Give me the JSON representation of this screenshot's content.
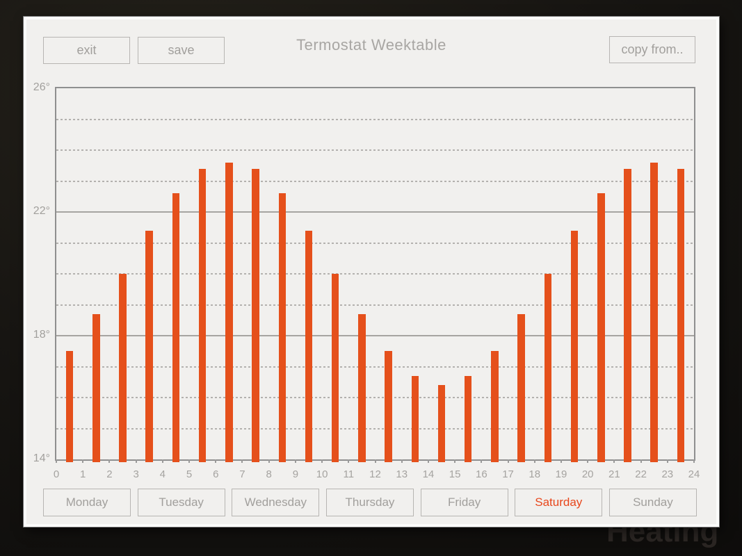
{
  "background_watermark": "Heating",
  "header": {
    "exit_label": "exit",
    "save_label": "save",
    "title": "Termostat Weektable",
    "copy_from_label": "copy from.."
  },
  "days": {
    "items": [
      "Monday",
      "Tuesday",
      "Wednesday",
      "Thursday",
      "Friday",
      "Saturday",
      "Sunday"
    ],
    "selected": "Saturday"
  },
  "chart_data": {
    "type": "bar",
    "title": "Termostat Weektable",
    "xlabel": "",
    "ylabel": "",
    "categories": [
      0,
      1,
      2,
      3,
      4,
      5,
      6,
      7,
      8,
      9,
      10,
      11,
      12,
      13,
      14,
      15,
      16,
      17,
      18,
      19,
      20,
      21,
      22,
      23
    ],
    "values": [
      17.5,
      18.7,
      20.0,
      21.4,
      22.6,
      23.4,
      23.6,
      23.4,
      22.6,
      21.4,
      20.0,
      18.7,
      17.5,
      16.7,
      16.4,
      16.7,
      17.5,
      18.7,
      20.0,
      21.4,
      22.6,
      23.4,
      23.6,
      23.4
    ],
    "unit": "°C",
    "ylim": [
      14,
      26
    ],
    "xlim": [
      0,
      24
    ],
    "y_tick_labels": [
      {
        "value": 26,
        "label": "26°"
      },
      {
        "value": 22,
        "label": "22°"
      },
      {
        "value": 18,
        "label": "18°"
      },
      {
        "value": 14,
        "label": "14°"
      }
    ],
    "x_tick_labels": [
      "0",
      "1",
      "2",
      "3",
      "4",
      "5",
      "6",
      "7",
      "8",
      "9",
      "10",
      "11",
      "12",
      "13",
      "14",
      "15",
      "16",
      "17",
      "18",
      "19",
      "20",
      "21",
      "22",
      "23",
      "24"
    ],
    "solid_gridlines": [
      26,
      22,
      18,
      14
    ],
    "dashed_gridlines": [
      25,
      24,
      23,
      21,
      20,
      19,
      17,
      16,
      15
    ],
    "grid": true,
    "legend": false,
    "bar_color": "#e5501b"
  },
  "colors": {
    "accent": "#e5501b",
    "selected_day_text": "#e8471c",
    "panel_bg": "#f1f0ee",
    "muted_text": "#a19f9c",
    "chart_frame": "#8f8f8f",
    "outer_bg": "#141210"
  }
}
